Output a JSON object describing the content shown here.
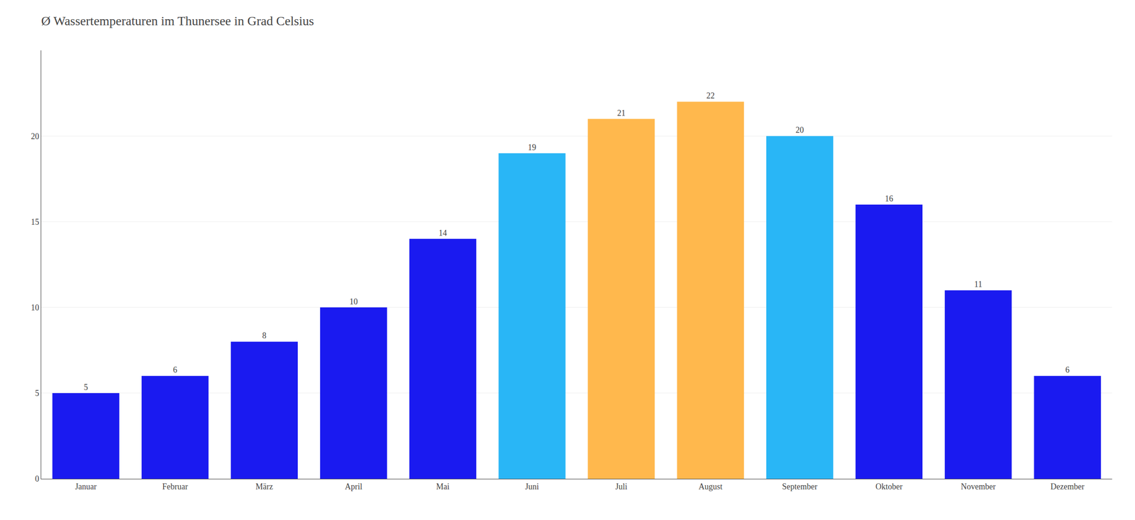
{
  "chart_data": {
    "type": "bar",
    "title": "Ø Wassertemperaturen im Thunersee in Grad Celsius",
    "categories": [
      "Januar",
      "Februar",
      "März",
      "April",
      "Mai",
      "Juni",
      "Juli",
      "August",
      "September",
      "Oktober",
      "November",
      "Dezember"
    ],
    "values": [
      5,
      6,
      8,
      10,
      14,
      19,
      21,
      22,
      20,
      16,
      11,
      6
    ],
    "colors": [
      "#1a1af0",
      "#1a1af0",
      "#1a1af0",
      "#1a1af0",
      "#1a1af0",
      "#29b6f6",
      "#ffb84d",
      "#ffb84d",
      "#29b6f6",
      "#1a1af0",
      "#1a1af0",
      "#1a1af0"
    ],
    "ylim": [
      0,
      25
    ],
    "yticks": [
      0,
      5,
      10,
      15,
      20
    ],
    "grid": true,
    "data_labels": true
  }
}
